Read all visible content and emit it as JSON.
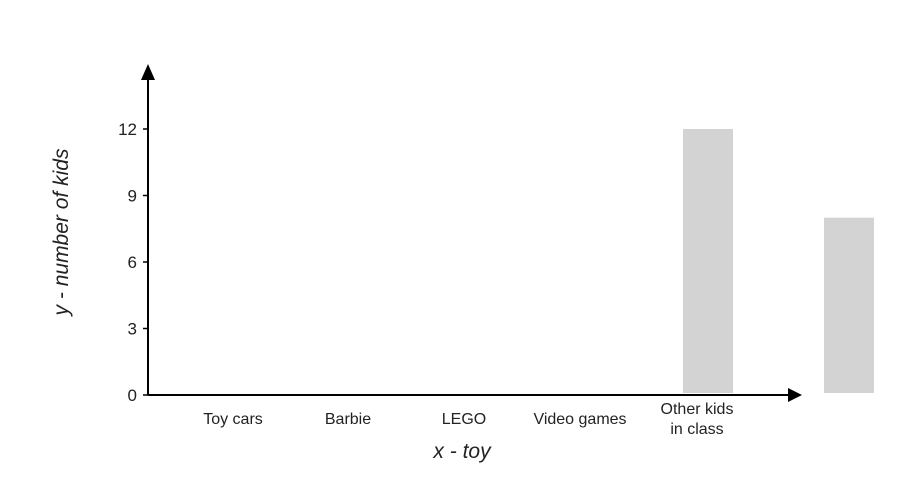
{
  "chart_data": {
    "type": "bar",
    "categories": [
      "Toy cars",
      "Barbie",
      "LEGO",
      "Video games",
      "Other kids in class"
    ],
    "category_lines": [
      [
        "Toy cars"
      ],
      [
        "Barbie"
      ],
      [
        "LEGO"
      ],
      [
        "Video games"
      ],
      [
        "Other kids",
        "in class"
      ]
    ],
    "values": [
      0,
      0,
      0,
      0,
      12
    ],
    "extra_bar_value": 8,
    "xlabel": "x - toy",
    "ylabel": "y - number of kids",
    "ylim": [
      0,
      14
    ],
    "yticks": [
      0,
      3,
      6,
      9,
      12
    ],
    "grid": false,
    "bar_color": "#d3d3d3",
    "axis_color": "#000000"
  }
}
